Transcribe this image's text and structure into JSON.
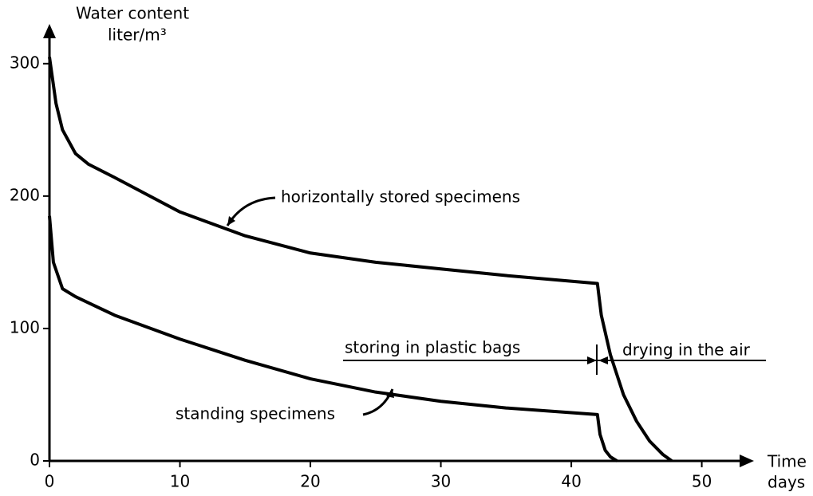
{
  "chart_data": {
    "type": "line",
    "y_label": [
      "Water content",
      "liter/m³"
    ],
    "x_label": [
      "Time",
      "days"
    ],
    "annotations": [
      "storing in plastic bags",
      "drying in the air"
    ],
    "xlim": [
      0,
      54
    ],
    "ylim": [
      0,
      330
    ],
    "xticks": [
      0,
      10,
      20,
      30,
      40,
      50
    ],
    "yticks": [
      0,
      100,
      200,
      300
    ],
    "grid": false,
    "series": [
      {
        "name": "horizontally stored specimens",
        "color": "#000000",
        "x": [
          0,
          0.5,
          1,
          2,
          3,
          5,
          10,
          15,
          20,
          25,
          30,
          35,
          42,
          42.3,
          43,
          44,
          45,
          46,
          47,
          47.7
        ],
        "values": [
          305,
          270,
          250,
          232,
          224,
          214,
          188,
          170,
          157,
          150,
          145,
          140,
          134,
          110,
          80,
          50,
          30,
          15,
          5,
          0
        ]
      },
      {
        "name": "standing specimens",
        "color": "#000000",
        "x": [
          0,
          0.3,
          1,
          2,
          5,
          10,
          15,
          20,
          25,
          30,
          35,
          42,
          42.2,
          42.6,
          43,
          43.5
        ],
        "values": [
          185,
          150,
          130,
          124,
          110,
          92,
          76,
          62,
          52,
          45,
          40,
          35,
          20,
          8,
          3,
          0
        ]
      }
    ]
  }
}
